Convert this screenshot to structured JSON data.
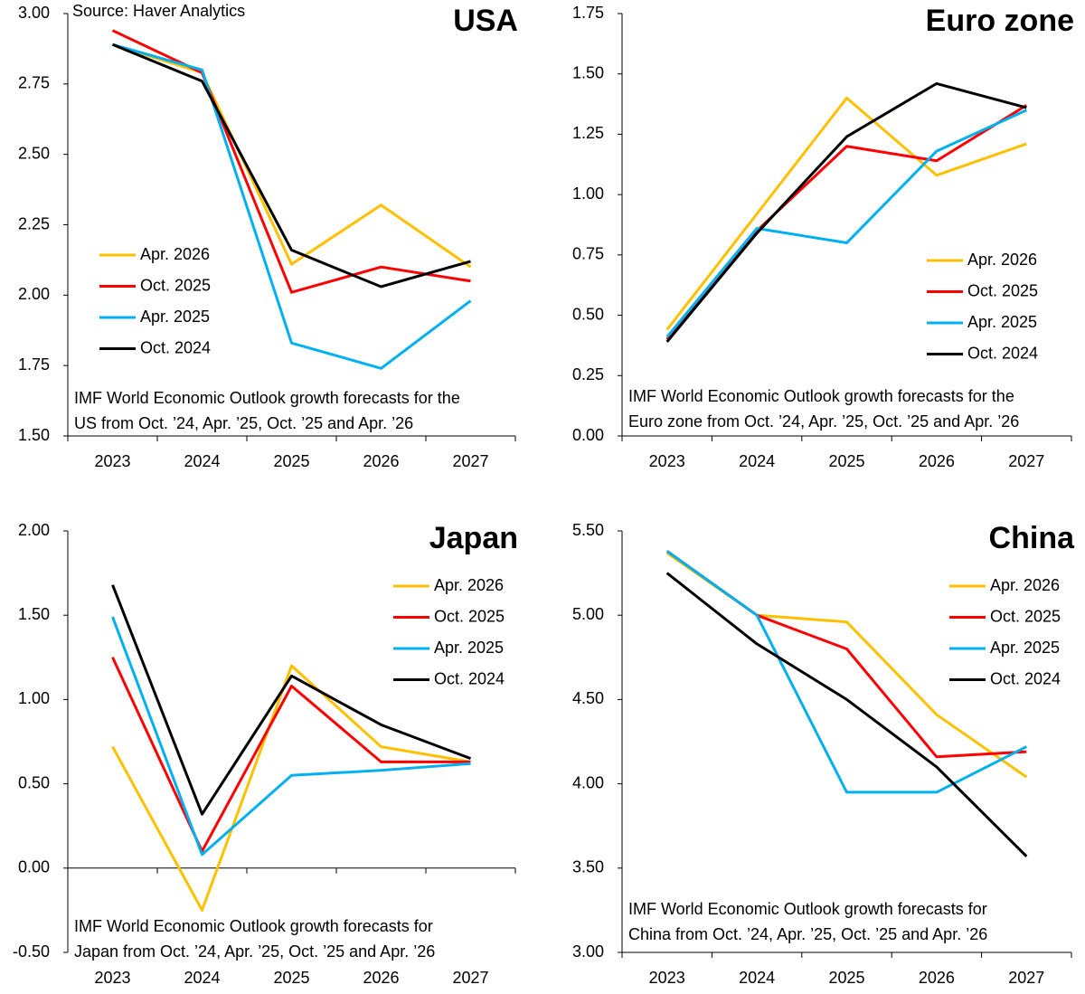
{
  "chart_data": [
    {
      "type": "line",
      "title": "USA",
      "source": "Source: Haver Analytics",
      "annotation": [
        "IMF World Economic Outlook growth forecasts for the",
        "US from Oct. ’24, Apr. ’25, Oct. ’25 and Apr. ’26"
      ],
      "categories": [
        "2023",
        "2024",
        "2025",
        "2026",
        "2027"
      ],
      "series": [
        {
          "name": "Apr. 2026",
          "color": "#FFC000",
          "values": [
            2.89,
            2.79,
            2.11,
            2.32,
            2.1
          ]
        },
        {
          "name": "Oct. 2025",
          "color": "#FF0000",
          "values": [
            2.94,
            2.79,
            2.01,
            2.1,
            2.05
          ]
        },
        {
          "name": "Apr. 2025",
          "color": "#00B0F0",
          "values": [
            2.89,
            2.8,
            1.83,
            1.74,
            1.98
          ]
        },
        {
          "name": "Oct. 2024",
          "color": "#000000",
          "values": [
            2.89,
            2.76,
            2.16,
            2.03,
            2.12
          ]
        }
      ],
      "ylim": [
        1.5,
        3.0
      ],
      "yticks": [
        {
          "value": 1.5,
          "label": "1.50"
        },
        {
          "value": 1.75,
          "label": "1.75"
        },
        {
          "value": 2.0,
          "label": "2.00"
        },
        {
          "value": 2.25,
          "label": "2.25"
        },
        {
          "value": 2.5,
          "label": "2.50"
        },
        {
          "value": 2.75,
          "label": "2.75"
        },
        {
          "value": 3.0,
          "label": "3.00"
        }
      ],
      "legend": "center left"
    },
    {
      "type": "line",
      "title": "Euro zone",
      "annotation": [
        "IMF World Economic Outlook growth forecasts for the",
        "Euro zone from Oct. ’24, Apr. ’25, Oct. ’25 and Apr. ’26"
      ],
      "categories": [
        "2023",
        "2024",
        "2025",
        "2026",
        "2027"
      ],
      "series": [
        {
          "name": "Apr. 2026",
          "color": "#FFC000",
          "values": [
            0.44,
            0.92,
            1.4,
            1.08,
            1.21
          ]
        },
        {
          "name": "Oct. 2025",
          "color": "#FF0000",
          "values": [
            0.4,
            0.85,
            1.2,
            1.14,
            1.37
          ]
        },
        {
          "name": "Apr. 2025",
          "color": "#00B0F0",
          "values": [
            0.41,
            0.86,
            0.8,
            1.18,
            1.35
          ]
        },
        {
          "name": "Oct. 2024",
          "color": "#000000",
          "values": [
            0.39,
            0.84,
            1.24,
            1.46,
            1.36
          ]
        }
      ],
      "ylim": [
        0,
        1.75
      ],
      "yticks": [
        {
          "value": 0,
          "label": "0.00"
        },
        {
          "value": 0.25,
          "label": "0.25"
        },
        {
          "value": 0.5,
          "label": "0.50"
        },
        {
          "value": 0.75,
          "label": "0.75"
        },
        {
          "value": 1.0,
          "label": "1.00"
        },
        {
          "value": 1.25,
          "label": "1.25"
        },
        {
          "value": 1.5,
          "label": "1.50"
        },
        {
          "value": 1.75,
          "label": "1.75"
        }
      ],
      "legend": "lower right"
    },
    {
      "type": "line",
      "title": "Japan",
      "annotation": [
        "IMF World Economic Outlook growth forecasts for",
        "Japan from Oct. ’24, Apr. ’25, Oct. ’25 and Apr. ’26"
      ],
      "categories": [
        "2023",
        "2024",
        "2025",
        "2026",
        "2027"
      ],
      "series": [
        {
          "name": "Apr. 2026",
          "color": "#FFC000",
          "values": [
            0.72,
            -0.25,
            1.2,
            0.72,
            0.63
          ]
        },
        {
          "name": "Oct. 2025",
          "color": "#FF0000",
          "values": [
            1.25,
            0.1,
            1.08,
            0.63,
            0.63
          ]
        },
        {
          "name": "Apr. 2025",
          "color": "#00B0F0",
          "values": [
            1.49,
            0.08,
            0.55,
            0.58,
            0.62
          ]
        },
        {
          "name": "Oct. 2024",
          "color": "#000000",
          "values": [
            1.68,
            0.32,
            1.14,
            0.85,
            0.65
          ]
        }
      ],
      "ylim": [
        -0.5,
        2.0
      ],
      "yticks": [
        {
          "value": -0.5,
          "label": "-0.50"
        },
        {
          "value": 0,
          "label": "0.00"
        },
        {
          "value": 0.5,
          "label": "0.50"
        },
        {
          "value": 1.0,
          "label": "1.00"
        },
        {
          "value": 1.5,
          "label": "1.50"
        },
        {
          "value": 2.0,
          "label": "2.00"
        }
      ],
      "legend": "upper right"
    },
    {
      "type": "line",
      "title": "China",
      "annotation": [
        "IMF World Economic Outlook growth forecasts for",
        "China from Oct. ’24, Apr. ’25, Oct. ’25 and Apr. ’26"
      ],
      "categories": [
        "2023",
        "2024",
        "2025",
        "2026",
        "2027"
      ],
      "series": [
        {
          "name": "Apr. 2026",
          "color": "#FFC000",
          "values": [
            5.37,
            5.0,
            4.96,
            4.41,
            4.04
          ]
        },
        {
          "name": "Oct. 2025",
          "color": "#FF0000",
          "values": [
            5.38,
            5.0,
            4.8,
            4.16,
            4.19
          ]
        },
        {
          "name": "Apr. 2025",
          "color": "#00B0F0",
          "values": [
            5.38,
            5.0,
            3.95,
            3.95,
            4.22
          ]
        },
        {
          "name": "Oct. 2024",
          "color": "#000000",
          "values": [
            5.25,
            4.83,
            4.5,
            4.1,
            3.57
          ]
        }
      ],
      "ylim": [
        3.0,
        5.5
      ],
      "yticks": [
        {
          "value": 3.0,
          "label": "3.00"
        },
        {
          "value": 3.5,
          "label": "3.50"
        },
        {
          "value": 4.0,
          "label": "4.00"
        },
        {
          "value": 4.5,
          "label": "4.50"
        },
        {
          "value": 5.0,
          "label": "5.00"
        },
        {
          "value": 5.5,
          "label": "5.50"
        }
      ],
      "legend": "upper right"
    }
  ]
}
